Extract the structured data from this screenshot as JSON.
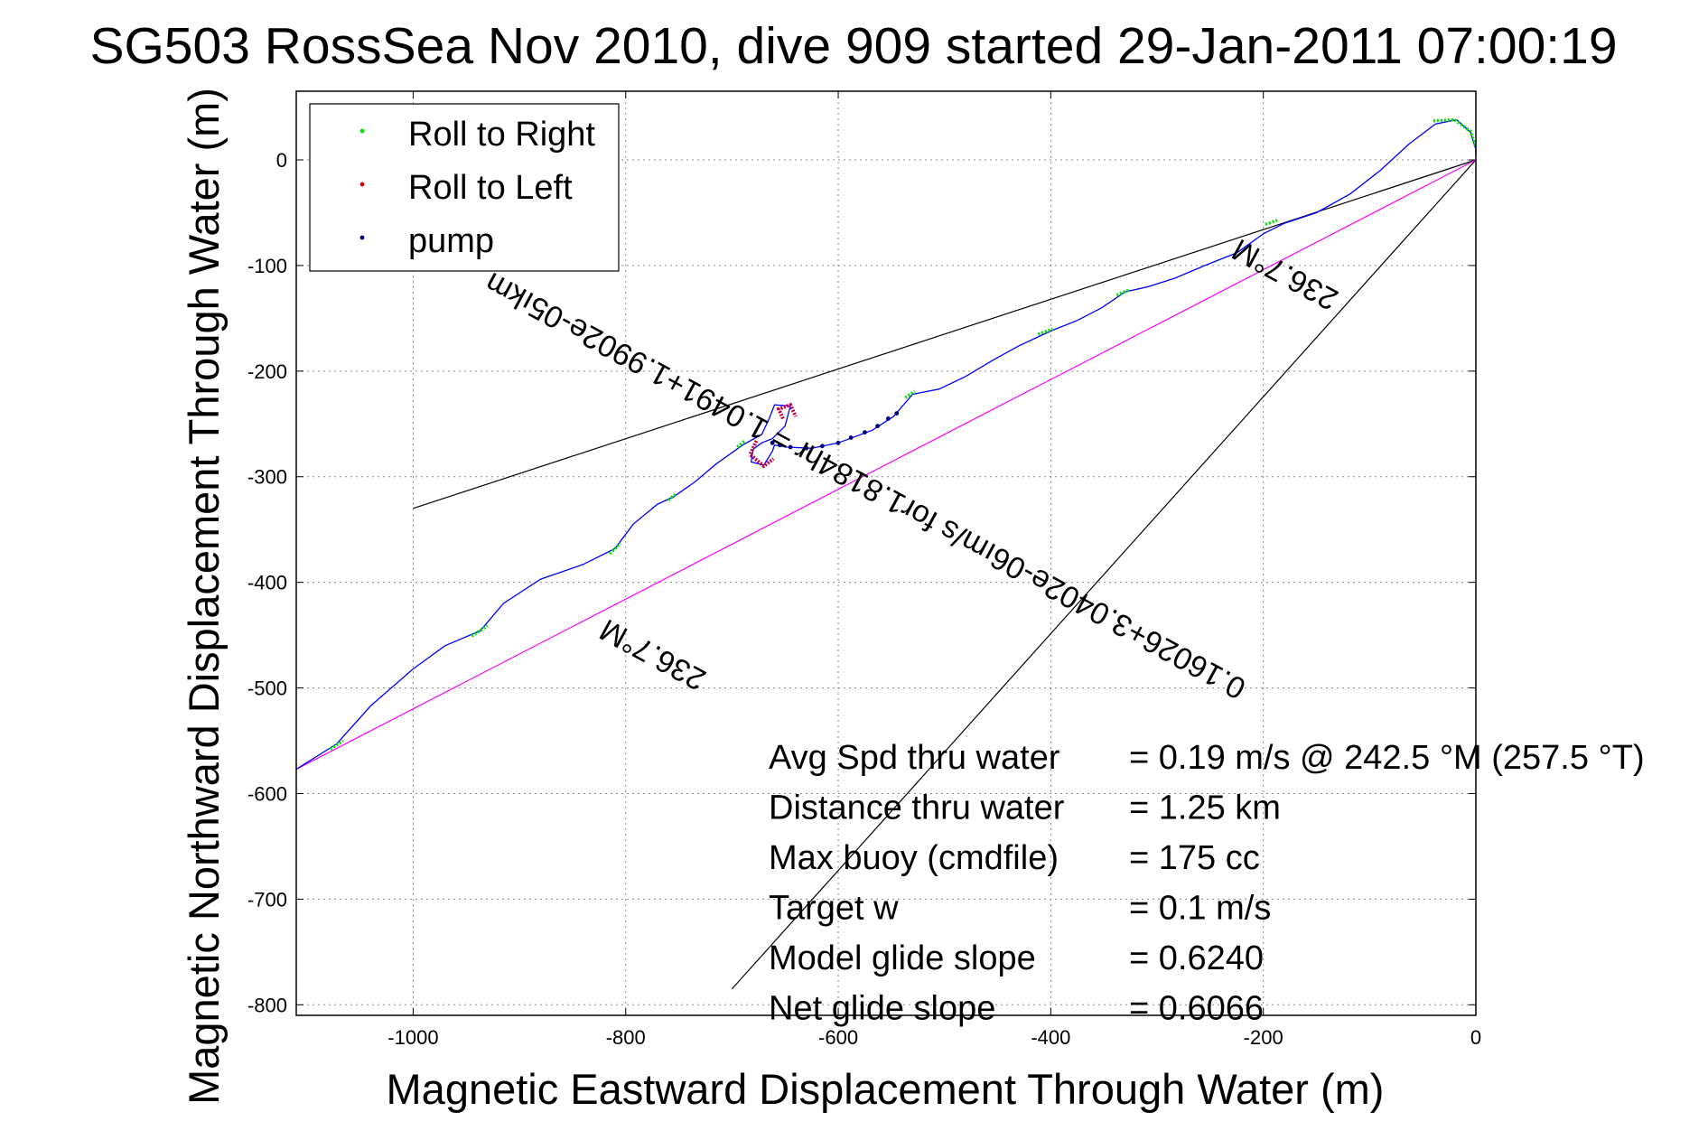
{
  "chart_data": {
    "type": "line",
    "title": "SG503 RossSea Nov 2010, dive 909 started 29-Jan-2011 07:00:19",
    "xlabel": "Magnetic Eastward Displacement Through Water (m)",
    "ylabel": "Magnetic Northward Displacement Through Water (m)",
    "xlim": [
      -1110,
      0
    ],
    "ylim": [
      -810,
      65
    ],
    "xticks": [
      -1000,
      -800,
      -600,
      -400,
      -200,
      0
    ],
    "yticks": [
      0,
      -100,
      -200,
      -300,
      -400,
      -500,
      -600,
      -700,
      -800
    ],
    "grid": true,
    "legend_location": "top-left",
    "legend": [
      {
        "label": "Roll to Right",
        "color": "#00e000",
        "marker": "dot"
      },
      {
        "label": "Roll to Left",
        "color": "#e00000",
        "marker": "dot"
      },
      {
        "label": "pump",
        "color": "#000080",
        "marker": "dot"
      }
    ],
    "track": {
      "color": "#0000ff",
      "points": [
        [
          -1110,
          -577
        ],
        [
          -1072,
          -553
        ],
        [
          -1040,
          -517
        ],
        [
          -1000,
          -482
        ],
        [
          -970,
          -460
        ],
        [
          -937,
          -446
        ],
        [
          -915,
          -420
        ],
        [
          -880,
          -397
        ],
        [
          -840,
          -383
        ],
        [
          -810,
          -368
        ],
        [
          -793,
          -345
        ],
        [
          -770,
          -326
        ],
        [
          -755,
          -319
        ],
        [
          -735,
          -305
        ],
        [
          -715,
          -288
        ],
        [
          -690,
          -270
        ],
        [
          -672,
          -260
        ],
        [
          -665,
          -245
        ],
        [
          -660,
          -232
        ],
        [
          -645,
          -233
        ],
        [
          -650,
          -252
        ],
        [
          -662,
          -264
        ],
        [
          -672,
          -268
        ],
        [
          -680,
          -274
        ],
        [
          -682,
          -286
        ],
        [
          -670,
          -289
        ],
        [
          -662,
          -276
        ],
        [
          -660,
          -270
        ],
        [
          -648,
          -272
        ],
        [
          -625,
          -273
        ],
        [
          -600,
          -268
        ],
        [
          -568,
          -256
        ],
        [
          -548,
          -243
        ],
        [
          -530,
          -222
        ],
        [
          -505,
          -217
        ],
        [
          -480,
          -205
        ],
        [
          -455,
          -190
        ],
        [
          -430,
          -176
        ],
        [
          -400,
          -162
        ],
        [
          -375,
          -152
        ],
        [
          -352,
          -140
        ],
        [
          -330,
          -125
        ],
        [
          -308,
          -120
        ],
        [
          -283,
          -112
        ],
        [
          -255,
          -100
        ],
        [
          -225,
          -88
        ],
        [
          -200,
          -70
        ],
        [
          -180,
          -60
        ],
        [
          -150,
          -50
        ],
        [
          -118,
          -32
        ],
        [
          -90,
          -10
        ],
        [
          -63,
          15
        ],
        [
          -38,
          34
        ],
        [
          -18,
          38
        ],
        [
          -5,
          26
        ],
        [
          0,
          10
        ],
        [
          0,
          4
        ]
      ]
    },
    "roll_right_segments": [
      [
        [
          -1078,
          -558
        ],
        [
          -1066,
          -550
        ]
      ],
      [
        [
          -945,
          -451
        ],
        [
          -930,
          -441
        ]
      ],
      [
        [
          -815,
          -373
        ],
        [
          -805,
          -363
        ]
      ],
      [
        [
          -760,
          -322
        ],
        [
          -752,
          -316
        ]
      ],
      [
        [
          -695,
          -272
        ],
        [
          -688,
          -266
        ]
      ],
      [
        [
          -537,
          -225
        ],
        [
          -528,
          -219
        ]
      ],
      [
        [
          -412,
          -165
        ],
        [
          -398,
          -160
        ]
      ],
      [
        [
          -338,
          -128
        ],
        [
          -326,
          -123
        ]
      ],
      [
        [
          -198,
          -61
        ],
        [
          -186,
          -57
        ]
      ],
      [
        [
          -40,
          37
        ],
        [
          -20,
          38
        ],
        [
          -5,
          27
        ],
        [
          0,
          12
        ]
      ]
    ],
    "roll_left_segments": [
      [
        [
          -652,
          -245
        ],
        [
          -656,
          -236
        ],
        [
          -645,
          -232
        ],
        [
          -640,
          -243
        ]
      ],
      [
        [
          -677,
          -266
        ],
        [
          -683,
          -279
        ],
        [
          -670,
          -290
        ],
        [
          -661,
          -283
        ]
      ]
    ],
    "pump_points": [
      [
        -662,
        -268
      ],
      [
        -655,
        -270
      ],
      [
        -645,
        -272
      ],
      [
        -630,
        -273
      ],
      [
        -615,
        -271
      ],
      [
        -600,
        -268
      ],
      [
        -588,
        -263
      ],
      [
        -575,
        -258
      ],
      [
        -563,
        -252
      ],
      [
        -553,
        -245
      ],
      [
        -545,
        -240
      ]
    ],
    "reference_lines": [
      {
        "from": [
          -1000,
          -330
        ],
        "to": [
          0,
          0
        ]
      },
      {
        "from": [
          -700,
          -785
        ],
        "to": [
          0,
          0
        ]
      },
      {
        "from": [
          -1110,
          -577
        ],
        "to": [
          0,
          0
        ],
        "color": "#ff00ff"
      }
    ],
    "annotations": [
      {
        "text": "236.7°M",
        "at": [
          -175,
          -100
        ],
        "rotation": 208.5
      },
      {
        "text": "0.16026+3.0402e-06ım/s for1.8184hr = 1.0491+1.9902e-05ıkm",
        "at": [
          -570,
          -300
        ],
        "rotation": 208.5
      },
      {
        "text": "236.7°M",
        "at": [
          -770,
          -460
        ],
        "rotation": 208.5
      }
    ],
    "info_rows": [
      {
        "label": "Avg Spd thru water",
        "value": "=  0.19 m/s @ 242.5 °M (257.5 °T)"
      },
      {
        "label": "Distance thru water",
        "value": "=  1.25 km"
      },
      {
        "label": "Max buoy (cmdfile)",
        "value": "= 175 cc"
      },
      {
        "label": "Target w",
        "value": "= 0.1 m/s"
      },
      {
        "label": "Model glide slope",
        "value": "= 0.6240"
      },
      {
        "label": "Net glide slope",
        "value": "= 0.6066"
      }
    ]
  }
}
